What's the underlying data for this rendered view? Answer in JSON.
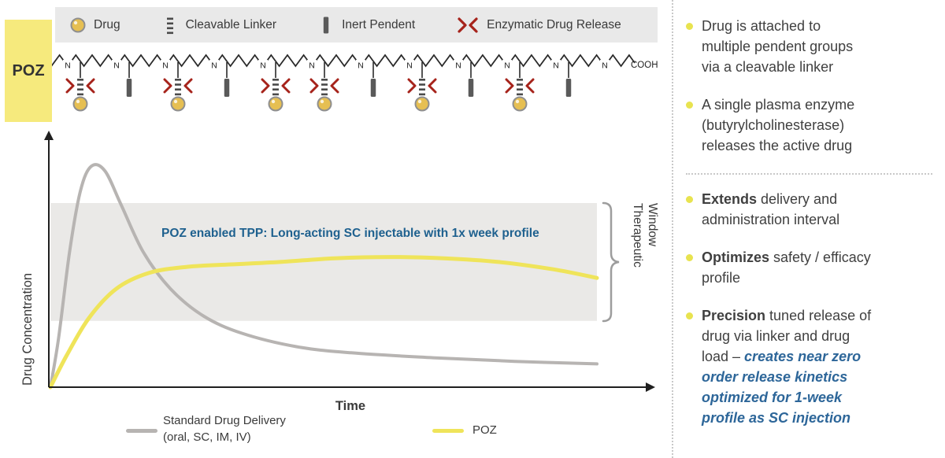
{
  "poz_label": "POZ",
  "legend_bar": {
    "items": [
      {
        "icon": "drug-icon",
        "label": "Drug"
      },
      {
        "icon": "cleavable-linker-icon",
        "label": "Cleavable Linker"
      },
      {
        "icon": "inert-pendent-icon",
        "label": "Inert Pendent"
      },
      {
        "icon": "enzymatic-drug-release-icon",
        "label": "Enzymatic Drug Release"
      }
    ]
  },
  "polymer": {
    "backbone_atom": "N",
    "end_group": "COOH",
    "pendant_sequence": [
      "drug",
      "inert",
      "drug",
      "inert",
      "drug",
      "drug",
      "inert",
      "drug",
      "inert",
      "drug",
      "inert"
    ]
  },
  "chart_data": {
    "type": "line",
    "xlabel": "Time",
    "ylabel": "Drug Concentration",
    "annotation": "POZ enabled TPP: Long-acting SC injectable with 1x week profile",
    "x_range": [
      0,
      1
    ],
    "y_range": [
      0,
      1
    ],
    "grid": false,
    "therapeutic_window": {
      "label": "Therapeutic Window",
      "y_low": 0.27,
      "y_high": 0.75
    },
    "series": [
      {
        "name": "Standard Drug Delivery (oral, SC, IM, IV)",
        "color": "#b7b4b2",
        "x": [
          0,
          0.015,
          0.035,
          0.055,
          0.075,
          0.1,
          0.13,
          0.17,
          0.22,
          0.28,
          0.35,
          0.45,
          0.55,
          0.7,
          0.85,
          1.0
        ],
        "y": [
          0,
          0.2,
          0.55,
          0.8,
          0.9,
          0.88,
          0.74,
          0.55,
          0.4,
          0.29,
          0.22,
          0.165,
          0.14,
          0.12,
          0.105,
          0.095
        ]
      },
      {
        "name": "POZ",
        "color": "#efe45a",
        "x": [
          0,
          0.03,
          0.07,
          0.12,
          0.18,
          0.25,
          0.33,
          0.42,
          0.52,
          0.62,
          0.72,
          0.82,
          0.92,
          1.0
        ],
        "y": [
          0,
          0.13,
          0.28,
          0.4,
          0.465,
          0.49,
          0.5,
          0.51,
          0.525,
          0.53,
          0.525,
          0.51,
          0.48,
          0.445
        ]
      }
    ],
    "legend": [
      {
        "swatch": "#b7b4b2",
        "label": "Standard Drug Delivery\n(oral, SC, IM, IV)"
      },
      {
        "swatch": "#efe45a",
        "label": "POZ"
      }
    ],
    "legend_position": "bottom"
  },
  "right_panel": {
    "bullet_color": "#e8e34f",
    "bullets_top": [
      {
        "text": "Drug is attached to\nmultiple pendent groups\nvia a cleavable linker"
      },
      {
        "text": "A single plasma enzyme\n(butyrylcholinesterase)\nreleases the active drug"
      }
    ],
    "bullets_bottom": [
      {
        "bold": "Extends",
        "rest": " delivery and\nadministration interval"
      },
      {
        "bold": "Optimizes",
        "rest": " safety / efficacy\nprofile"
      },
      {
        "bold": "Precision",
        "rest": " tuned release of\ndrug via linker and drug\nload – ",
        "emphasis": "creates near zero\norder release kinetics\noptimized for 1-week\nprofile as SC injection"
      }
    ]
  },
  "colors": {
    "poz_box_yellow": "#f6ea7d",
    "legend_bar_gray": "#e9e9e9",
    "curve_gray": "#b7b4b2",
    "curve_yellow": "#efe45a",
    "enzyme_red": "#a6231b",
    "annotation_blue": "#1f618f",
    "emphasis_blue": "#2d6699",
    "bullet_yellow": "#e8e34f",
    "band_gray": "#eae9e7",
    "drug_gold": "#e6bf52",
    "pendent_gray": "#5a5a5a"
  }
}
